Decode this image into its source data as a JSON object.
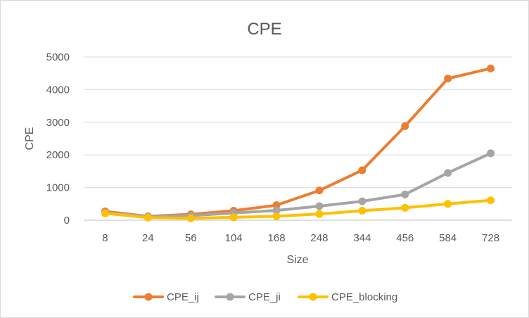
{
  "chart_data": {
    "type": "line",
    "title": "CPE",
    "xlabel": "Size",
    "ylabel": "CPE",
    "categories": [
      "8",
      "24",
      "56",
      "104",
      "168",
      "248",
      "344",
      "456",
      "584",
      "728"
    ],
    "ylim": [
      0,
      5000
    ],
    "yticks": [
      "0",
      "1000",
      "2000",
      "3000",
      "4000",
      "5000"
    ],
    "grid": true,
    "legend_position": "bottom",
    "series": [
      {
        "name": "CPE_ij",
        "color": "#ED7D31",
        "values": [
          270,
          120,
          180,
          290,
          460,
          910,
          1530,
          2880,
          4340,
          4650
        ]
      },
      {
        "name": "CPE_ji",
        "color": "#A5A5A5",
        "values": [
          230,
          120,
          140,
          220,
          300,
          430,
          580,
          790,
          1450,
          2050
        ]
      },
      {
        "name": "CPE_blocking",
        "color": "#FFC000",
        "values": [
          210,
          80,
          60,
          90,
          120,
          190,
          290,
          380,
          500,
          610
        ]
      }
    ]
  }
}
